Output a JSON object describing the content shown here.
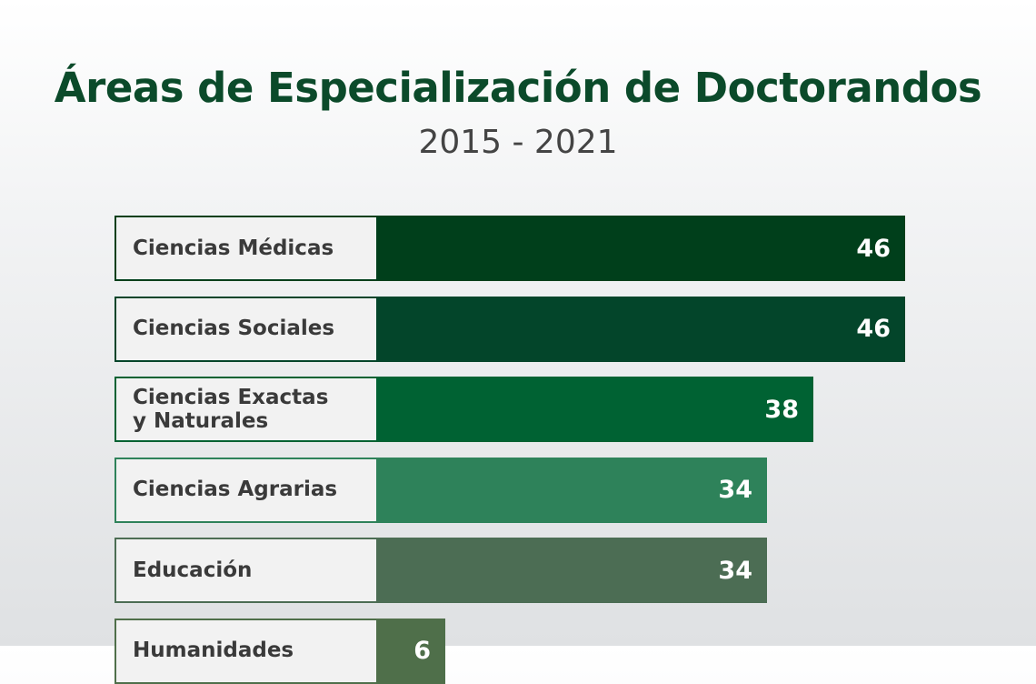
{
  "chart_data": {
    "type": "bar",
    "orientation": "horizontal",
    "title": "Áreas de Especialización de Doctorandos",
    "subtitle": "2015 - 2021",
    "categories": [
      "Ciencias Médicas",
      "Ciencias Sociales",
      "Ciencias Exactas\ny Naturales",
      "Ciencias Agrarias",
      "Educación",
      "Humanidades"
    ],
    "values": [
      46,
      46,
      38,
      34,
      34,
      6
    ],
    "colors": [
      "#003f1b",
      "#03452a",
      "#006233",
      "#2e825a",
      "#4c6d54",
      "#4f6f4a"
    ],
    "xlim": [
      0,
      46
    ],
    "grid": false,
    "legend": "none",
    "data_labels": true
  }
}
